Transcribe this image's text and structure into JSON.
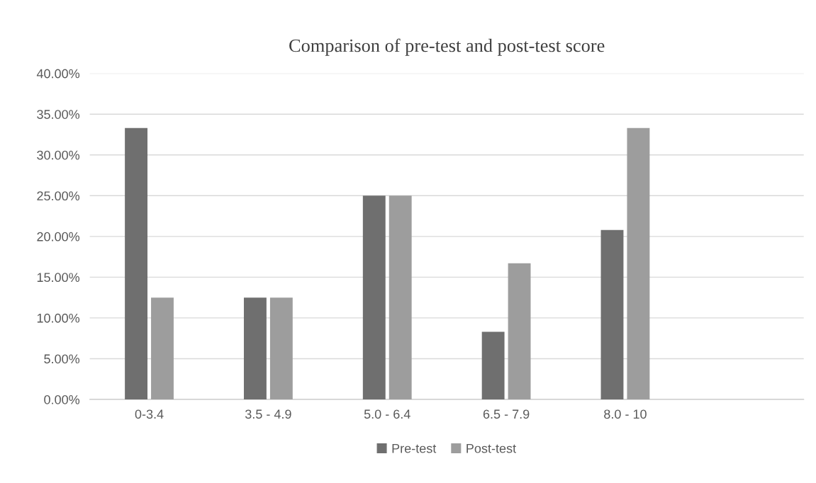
{
  "chart_data": {
    "type": "bar",
    "title": "Comparison of pre-test and post-test score",
    "categories": [
      "0-3.4",
      "3.5 - 4.9",
      "5.0 - 6.4",
      "6.5 - 7.9",
      "8.0 - 10",
      null
    ],
    "series": [
      {
        "name": "Pre-test",
        "color": "#6f6f6f",
        "values": [
          33.3,
          12.5,
          25,
          8.3,
          20.8,
          null
        ]
      },
      {
        "name": "Post-test",
        "color": "#9d9d9d",
        "values": [
          12.5,
          12.5,
          25,
          16.7,
          33.3,
          null
        ]
      }
    ],
    "ylim": [
      0,
      40
    ],
    "yticks": [
      {
        "value": 0,
        "label": "0.00%"
      },
      {
        "value": 5,
        "label": "5.00%"
      },
      {
        "value": 10,
        "label": "10.00%"
      },
      {
        "value": 15,
        "label": "15.00%"
      },
      {
        "value": 20,
        "label": "20.00%"
      },
      {
        "value": 25,
        "label": "25.00%"
      },
      {
        "value": 30,
        "label": "30.00%"
      },
      {
        "value": 35,
        "label": "35.00%"
      },
      {
        "value": 40,
        "label": "40.00%"
      }
    ],
    "grid": "y",
    "legend": "bottom"
  }
}
